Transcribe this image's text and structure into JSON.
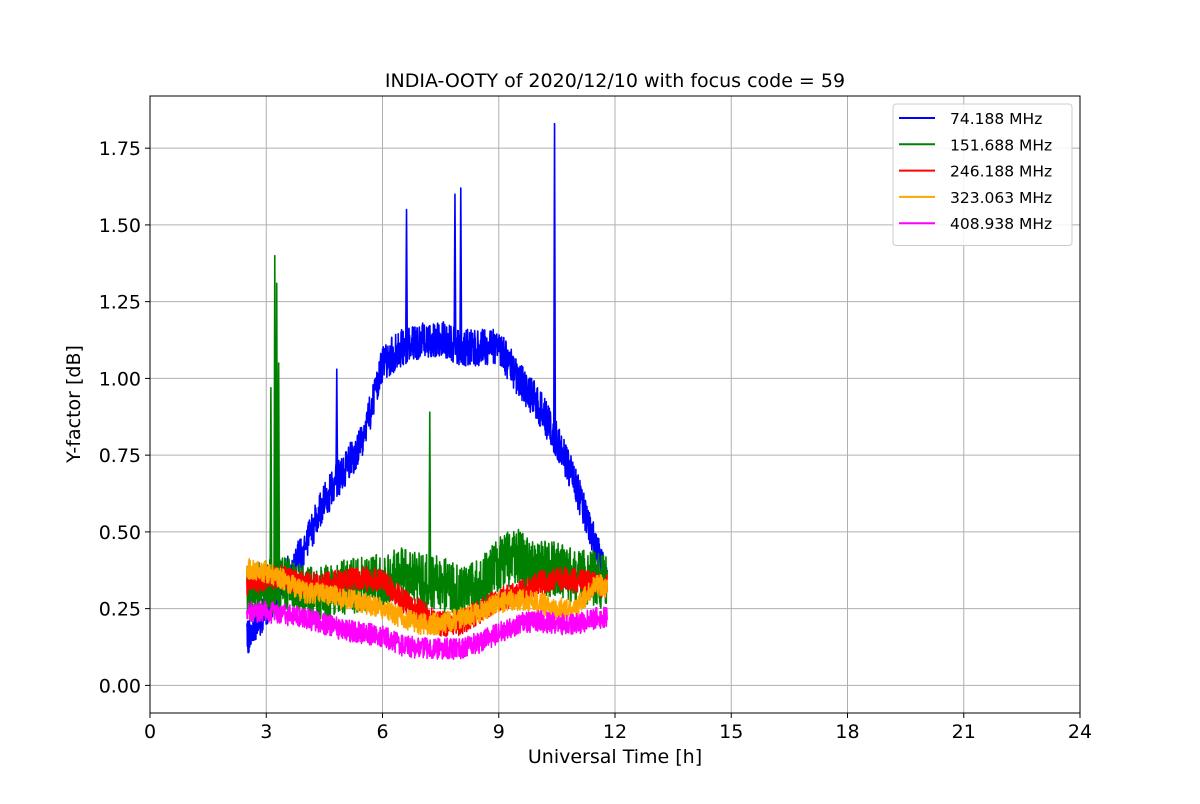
{
  "chart_data": {
    "type": "line",
    "title": "INDIA-OOTY of 2020/12/10 with focus code = 59",
    "xlabel": "Universal Time [h]",
    "ylabel": "Y-factor [dB]",
    "xlim": [
      0,
      24
    ],
    "ylim": [
      -0.09,
      1.92
    ],
    "xticks": [
      0,
      3,
      6,
      9,
      12,
      15,
      18,
      21,
      24
    ],
    "xtick_labels": [
      "0",
      "3",
      "6",
      "9",
      "12",
      "15",
      "18",
      "21",
      "24"
    ],
    "yticks": [
      0.0,
      0.25,
      0.5,
      0.75,
      1.0,
      1.25,
      1.5,
      1.75
    ],
    "ytick_labels": [
      "0.00",
      "0.25",
      "0.50",
      "0.75",
      "1.00",
      "1.25",
      "1.50",
      "1.75"
    ],
    "grid": true,
    "legend_position": "top-right",
    "series": [
      {
        "name": " 74.188 MHz",
        "color": "#0000ff",
        "x": [
          2.5,
          3.0,
          3.5,
          4.0,
          4.5,
          5.0,
          5.5,
          6.0,
          6.5,
          7.0,
          7.5,
          8.0,
          8.5,
          9.0,
          9.5,
          10.0,
          10.5,
          11.0,
          11.5,
          11.8
        ],
        "y": [
          0.15,
          0.25,
          0.35,
          0.45,
          0.6,
          0.7,
          0.8,
          1.05,
          1.1,
          1.12,
          1.13,
          1.1,
          1.1,
          1.1,
          1.0,
          0.92,
          0.8,
          0.65,
          0.45,
          0.35
        ],
        "noise": 0.06
      },
      {
        "name": "151.688 MHz",
        "color": "#008000",
        "x": [
          2.5,
          3.0,
          3.5,
          4.0,
          4.5,
          5.0,
          5.5,
          6.0,
          6.5,
          7.0,
          7.5,
          8.0,
          8.5,
          9.0,
          9.5,
          10.0,
          10.5,
          11.0,
          11.5,
          11.8
        ],
        "y": [
          0.3,
          0.32,
          0.33,
          0.3,
          0.3,
          0.32,
          0.33,
          0.34,
          0.36,
          0.34,
          0.33,
          0.3,
          0.32,
          0.4,
          0.42,
          0.38,
          0.38,
          0.35,
          0.35,
          0.33
        ],
        "noise": 0.09
      },
      {
        "name": "246.188 MHz",
        "color": "#ff0000",
        "x": [
          2.5,
          3.0,
          3.5,
          4.0,
          4.5,
          5.0,
          5.5,
          6.0,
          6.5,
          7.0,
          7.5,
          8.0,
          8.5,
          9.0,
          9.5,
          10.0,
          10.5,
          11.0,
          11.5,
          11.8
        ],
        "y": [
          0.33,
          0.35,
          0.35,
          0.33,
          0.33,
          0.34,
          0.35,
          0.34,
          0.28,
          0.24,
          0.2,
          0.2,
          0.24,
          0.28,
          0.3,
          0.33,
          0.35,
          0.34,
          0.33,
          0.32
        ],
        "noise": 0.04
      },
      {
        "name": "323.063 MHz",
        "color": "#ffa500",
        "x": [
          2.5,
          3.0,
          3.5,
          4.0,
          4.5,
          5.0,
          5.5,
          6.0,
          6.5,
          7.0,
          7.5,
          8.0,
          8.5,
          9.0,
          9.5,
          10.0,
          10.5,
          11.0,
          11.5,
          11.8
        ],
        "y": [
          0.38,
          0.37,
          0.34,
          0.3,
          0.3,
          0.28,
          0.27,
          0.25,
          0.22,
          0.2,
          0.2,
          0.22,
          0.24,
          0.27,
          0.28,
          0.27,
          0.25,
          0.25,
          0.33,
          0.32
        ],
        "noise": 0.035
      },
      {
        "name": "408.938 MHz",
        "color": "#ff00ff",
        "x": [
          2.5,
          3.0,
          3.5,
          4.0,
          4.5,
          5.0,
          5.5,
          6.0,
          6.5,
          7.0,
          7.5,
          8.0,
          8.5,
          9.0,
          9.5,
          10.0,
          10.5,
          11.0,
          11.5,
          11.8
        ],
        "y": [
          0.24,
          0.24,
          0.23,
          0.22,
          0.2,
          0.18,
          0.17,
          0.16,
          0.13,
          0.12,
          0.12,
          0.12,
          0.14,
          0.17,
          0.2,
          0.21,
          0.2,
          0.2,
          0.22,
          0.22
        ],
        "noise": 0.035
      }
    ],
    "annotations": [
      {
        "series": 0,
        "x": 10.42,
        "y": 1.83
      },
      {
        "series": 0,
        "x": 6.6,
        "y": 1.55
      },
      {
        "series": 0,
        "x": 8.0,
        "y": 1.62
      },
      {
        "series": 0,
        "x": 7.85,
        "y": 1.6
      },
      {
        "series": 0,
        "x": 4.8,
        "y": 1.03
      },
      {
        "series": 1,
        "x": 3.2,
        "y": 1.4
      },
      {
        "series": 1,
        "x": 3.25,
        "y": 1.31
      },
      {
        "series": 1,
        "x": 3.3,
        "y": 1.05
      },
      {
        "series": 1,
        "x": 3.1,
        "y": 0.97
      },
      {
        "series": 1,
        "x": 7.2,
        "y": 0.89
      }
    ]
  }
}
